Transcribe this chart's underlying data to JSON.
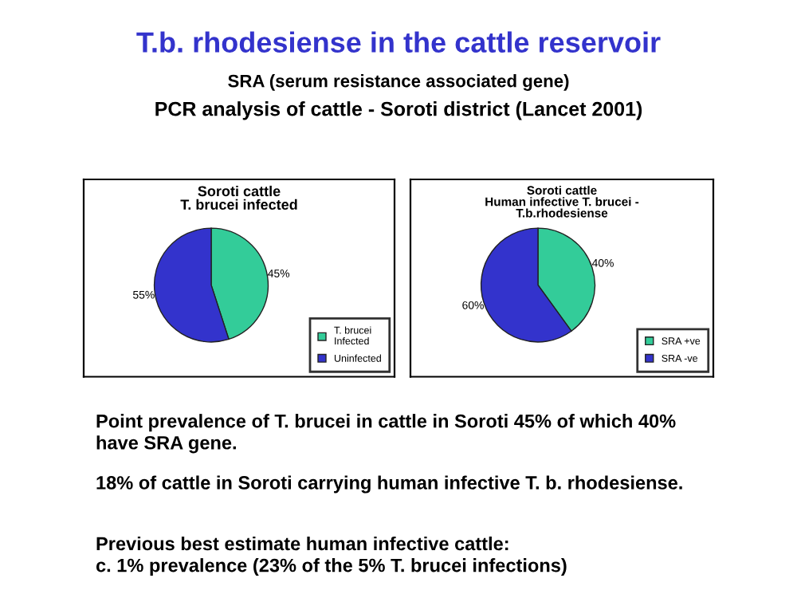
{
  "chart_data": [
    {
      "type": "pie",
      "title": "Soroti cattle\nT. brucei infected",
      "categories": [
        "T. brucei\nInfected",
        "Uninfected"
      ],
      "values": [
        45,
        55
      ],
      "colors": [
        "#33cc99",
        "#3333cc"
      ],
      "value_labels": [
        "45%",
        "55%"
      ],
      "legend": "bottom right",
      "annotations": [
        "T.b. rhodesiense in the cattle reservoir",
        "SRA (serum resistance associated gene)",
        "PCR analysis of cattle - Soroti district (Lancet 2001)",
        "Point prevalence of T. brucei in cattle in Soroti 45% of which 40%\nhave SRA gene.",
        "18% of cattle in Soroti carrying human infective T. b. rhodesiense.",
        "Previous best estimate human infective cattle:\nc. 1% prevalence (23% of the 5% T. brucei infections)"
      ]
    },
    {
      "type": "pie",
      "title": "Soroti cattle\nHuman infective T. brucei -\nT.b.rhodesiense",
      "categories": [
        "SRA +ve",
        "SRA -ve"
      ],
      "values": [
        40,
        60
      ],
      "colors": [
        "#33cc99",
        "#3333cc"
      ],
      "value_labels": [
        "40%",
        "60%"
      ],
      "legend": "bottom right"
    }
  ]
}
